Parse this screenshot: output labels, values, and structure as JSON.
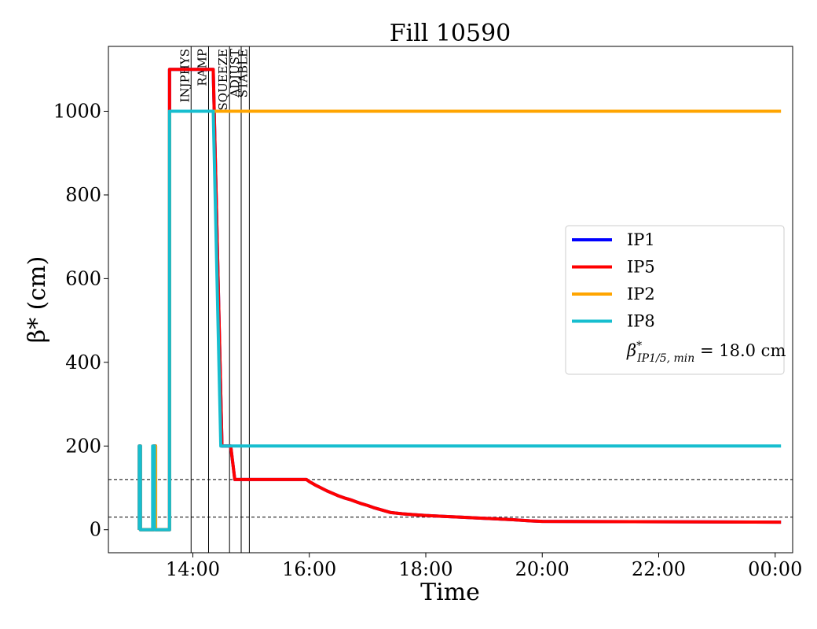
{
  "chart_data": {
    "type": "line",
    "title": "Fill 10590",
    "xlabel": "Time",
    "ylabel": "β* (cm)",
    "x_unit": "hours (clock time, 24h; values above 24 are after midnight)",
    "xlim": [
      12.55,
      24.3
    ],
    "ylim": [
      -55,
      1155
    ],
    "x_ticks": [
      {
        "value": 14,
        "label": "14:00"
      },
      {
        "value": 16,
        "label": "16:00"
      },
      {
        "value": 18,
        "label": "18:00"
      },
      {
        "value": 20,
        "label": "20:00"
      },
      {
        "value": 22,
        "label": "22:00"
      },
      {
        "value": 24,
        "label": "00:00"
      }
    ],
    "y_ticks": [
      0,
      200,
      400,
      600,
      800,
      1000
    ],
    "grid": false,
    "legend_position": "center-right",
    "colors": {
      "IP1": "#0000ff",
      "IP5": "#ff0000",
      "IP2": "#ffa500",
      "IP8": "#17becf",
      "phase_lines": "#000000"
    },
    "phases": [
      {
        "label": "INJPHYS",
        "x": 13.97
      },
      {
        "label": "RAMP",
        "x": 14.27
      },
      {
        "label": "SQUEEZE",
        "x": 14.63
      },
      {
        "label": "ADJUST",
        "x": 14.83
      },
      {
        "label": "STABLE",
        "x": 14.97
      }
    ],
    "reference_lines": [
      120,
      30
    ],
    "legend_extra": {
      "prefix": "β",
      "superscript": "*",
      "subscript": "IP1/5, min",
      "value_text": " = 18.0 cm"
    },
    "series": [
      {
        "name": "IP1",
        "x": [
          13.08,
          13.08,
          13.1,
          13.1,
          13.33,
          13.33,
          13.36,
          13.36,
          13.6,
          13.6,
          14.35,
          14.5,
          14.53,
          14.65,
          14.72,
          15.95,
          16.0,
          16.1,
          16.2,
          16.3,
          16.4,
          16.5,
          16.6,
          16.7,
          16.8,
          16.9,
          17.0,
          17.1,
          17.2,
          17.3,
          17.4,
          17.6,
          17.8,
          18.0,
          18.3,
          18.6,
          18.9,
          19.2,
          19.5,
          19.8,
          20.0,
          24.1
        ],
        "y": [
          0,
          200,
          200,
          0,
          0,
          200,
          200,
          0,
          0,
          1100,
          1100,
          200,
          200,
          200,
          120,
          120,
          115,
          107,
          100,
          93,
          87,
          81,
          76,
          72,
          67,
          62,
          58,
          53,
          49,
          45,
          41,
          38,
          36,
          34,
          32,
          30,
          28,
          26,
          24,
          21,
          20,
          18
        ]
      },
      {
        "name": "IP5",
        "x": [
          13.08,
          13.08,
          13.1,
          13.1,
          13.33,
          13.33,
          13.36,
          13.36,
          13.6,
          13.6,
          14.35,
          14.5,
          14.53,
          14.65,
          14.72,
          15.95,
          16.0,
          16.1,
          16.2,
          16.3,
          16.4,
          16.5,
          16.6,
          16.7,
          16.8,
          16.9,
          17.0,
          17.1,
          17.2,
          17.3,
          17.4,
          17.6,
          17.8,
          18.0,
          18.3,
          18.6,
          18.9,
          19.2,
          19.5,
          19.8,
          20.0,
          24.1
        ],
        "y": [
          0,
          200,
          200,
          0,
          0,
          200,
          200,
          0,
          0,
          1100,
          1100,
          200,
          200,
          200,
          120,
          120,
          115,
          107,
          100,
          93,
          87,
          81,
          76,
          72,
          67,
          62,
          58,
          53,
          49,
          45,
          41,
          38,
          36,
          34,
          32,
          30,
          28,
          26,
          24,
          21,
          20,
          18
        ]
      },
      {
        "name": "IP2",
        "x": [
          13.08,
          13.08,
          13.1,
          13.1,
          13.33,
          13.33,
          13.36,
          13.36,
          13.6,
          13.6,
          24.1
        ],
        "y": [
          0,
          200,
          200,
          0,
          0,
          200,
          200,
          0,
          0,
          1000,
          1000
        ]
      },
      {
        "name": "IP8",
        "x": [
          13.08,
          13.08,
          13.1,
          13.1,
          13.31,
          13.31,
          13.34,
          13.34,
          13.6,
          13.6,
          14.35,
          14.48,
          14.5,
          24.1
        ],
        "y": [
          0,
          200,
          200,
          0,
          0,
          200,
          200,
          0,
          0,
          1000,
          1000,
          200,
          200,
          200
        ]
      }
    ]
  }
}
